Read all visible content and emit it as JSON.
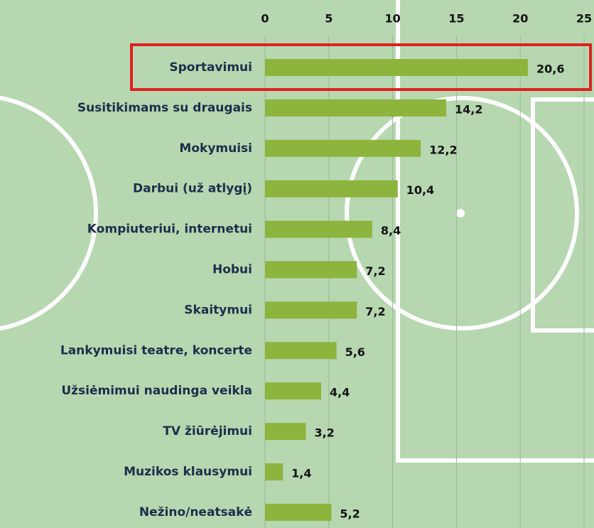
{
  "chart_data": {
    "type": "bar",
    "orientation": "horizontal",
    "categories": [
      "Sportavimui",
      "Susitikimams su draugais",
      "Mokymuisi",
      "Darbui (už atlygį)",
      "Kompiuteriui, internetui",
      "Hobui",
      "Skaitymui",
      "Lankymuisi teatre, koncerte",
      "Užsiėmimui naudinga veikla",
      "TV žiūrėjimui",
      "Muzikos klausymui",
      "Nežino/neatsakė"
    ],
    "values": [
      20.6,
      14.2,
      12.2,
      10.4,
      8.4,
      7.2,
      7.2,
      5.6,
      4.4,
      3.2,
      1.4,
      5.2
    ],
    "value_labels": [
      "20,6",
      "14,2",
      "12,2",
      "10,4",
      "8,4",
      "7,2",
      "7,2",
      "5,6",
      "4,4",
      "3,2",
      "1,4",
      "5,2"
    ],
    "color": "#8db43c",
    "xlim": [
      0,
      25
    ],
    "xticks": [
      0,
      5,
      10,
      15,
      20,
      25
    ],
    "grid": true
  }
}
